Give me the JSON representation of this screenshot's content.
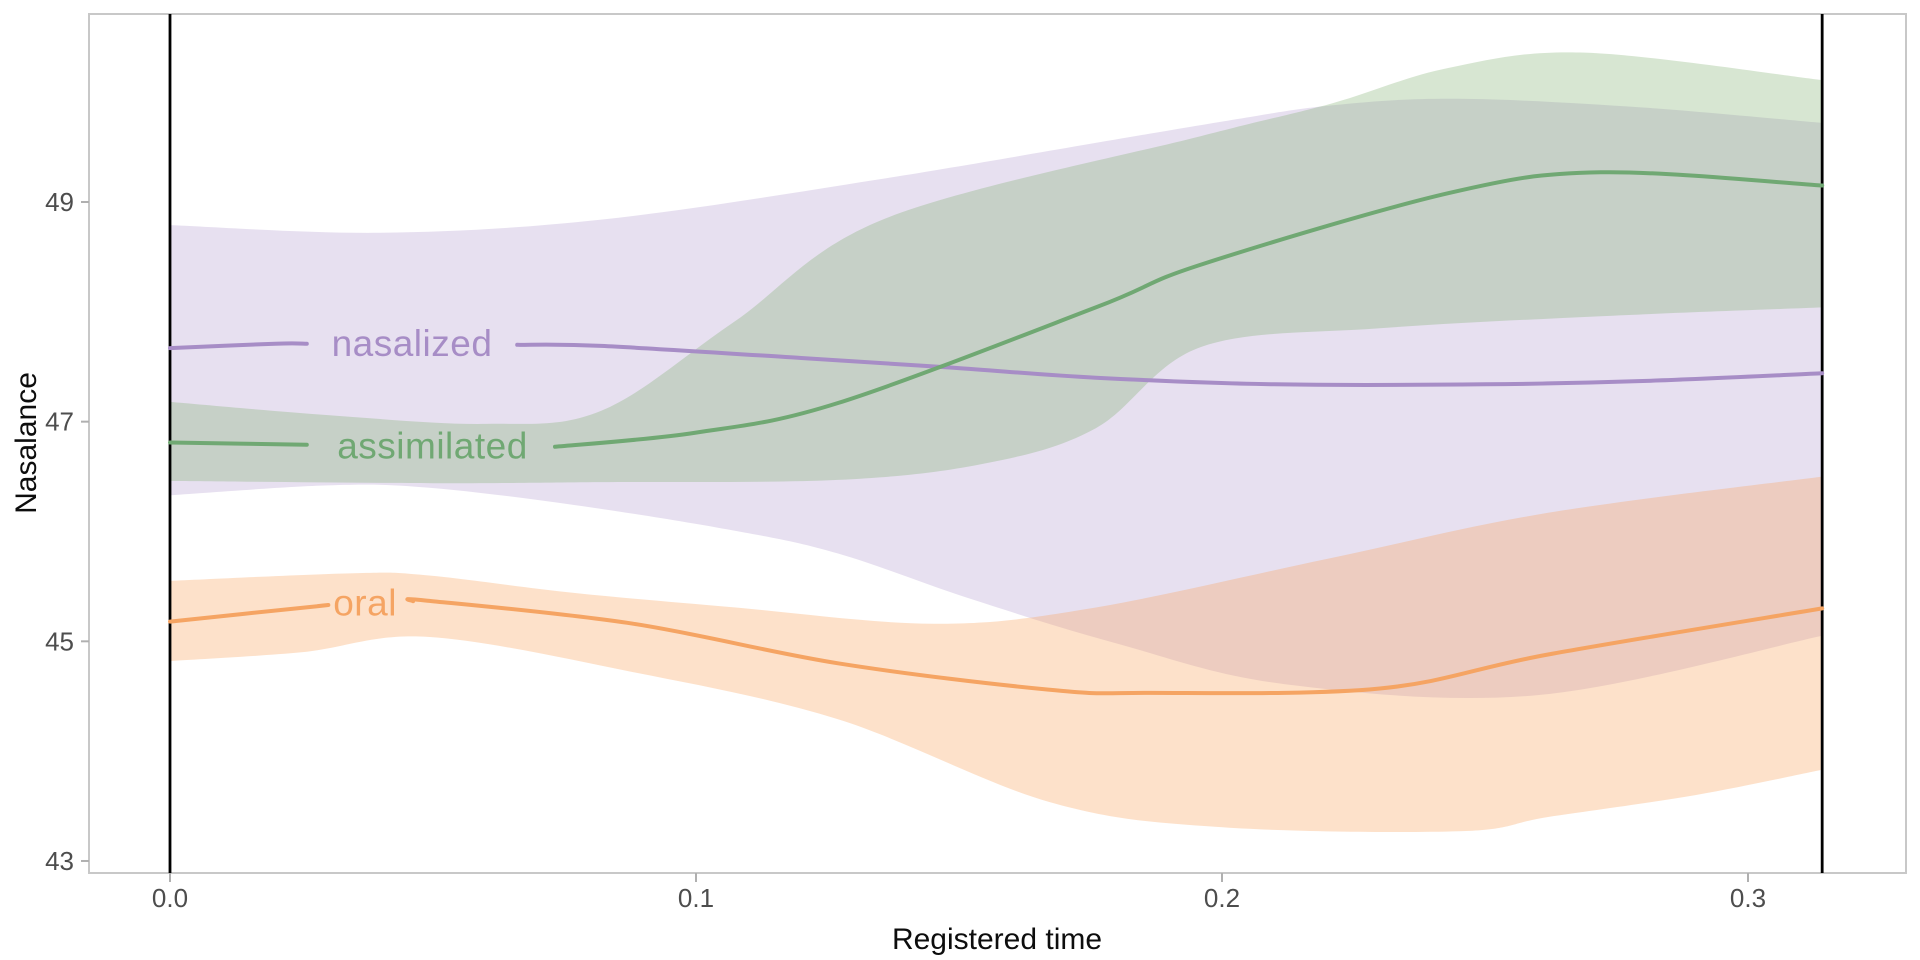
{
  "page": {
    "background": "#ffffff"
  },
  "style": {
    "panel_border_color": "#c8c8c8",
    "tick_color": "#b0b0b0",
    "tick_label_color": "#4d4d4d",
    "axis_title_color": "#0d0d0d",
    "reference_line_color": "#000000",
    "background": "#ffffff"
  },
  "chart_data": {
    "type": "line",
    "title": "",
    "xlabel": "Registered time",
    "ylabel": "Nasalance",
    "xlim": [
      -0.0157,
      0.3298
    ],
    "ylim": [
      42.89,
      50.71
    ],
    "grid": "off",
    "legend": "inline-labels",
    "x_ticks": [
      {
        "value": 0.0,
        "label": "0.0"
      },
      {
        "value": 0.1,
        "label": "0.1"
      },
      {
        "value": 0.2,
        "label": "0.2"
      },
      {
        "value": 0.3,
        "label": "0.3"
      }
    ],
    "y_ticks": [
      {
        "value": 43,
        "label": "43"
      },
      {
        "value": 45,
        "label": "45"
      },
      {
        "value": 47,
        "label": "47"
      },
      {
        "value": 49,
        "label": "49"
      }
    ],
    "reference_lines_x": [
      0.0,
      0.3141
    ],
    "series": [
      {
        "name": "nasalized",
        "line_color": "#a78dc6",
        "band_color": "#a78dc6",
        "band_opacity": 0.27,
        "label": {
          "text": "nasalized",
          "t": 0.046,
          "gap_start": 0.026,
          "gap_end": 0.066
        },
        "line": [
          [
            0,
            47.67
          ],
          [
            0.02,
            47.71
          ],
          [
            0.046,
            47.71
          ],
          [
            0.066,
            47.7
          ],
          [
            0.082,
            47.69
          ],
          [
            0.12,
            47.58
          ],
          [
            0.149,
            47.49
          ],
          [
            0.176,
            47.4
          ],
          [
            0.21,
            47.34
          ],
          [
            0.25,
            47.34
          ],
          [
            0.28,
            47.37
          ],
          [
            0.3141,
            47.44
          ]
        ],
        "band_upper": [
          [
            0,
            48.79
          ],
          [
            0.04,
            48.72
          ],
          [
            0.082,
            48.84
          ],
          [
            0.134,
            49.2
          ],
          [
            0.196,
            49.7
          ],
          [
            0.221,
            49.88
          ],
          [
            0.245,
            49.94
          ],
          [
            0.28,
            49.86
          ],
          [
            0.3141,
            49.72
          ]
        ],
        "band_lower": [
          [
            0,
            46.33
          ],
          [
            0.03,
            46.42
          ],
          [
            0.049,
            46.4
          ],
          [
            0.077,
            46.24
          ],
          [
            0.107,
            46.01
          ],
          [
            0.127,
            45.8
          ],
          [
            0.152,
            45.39
          ],
          [
            0.18,
            44.98
          ],
          [
            0.212,
            44.61
          ],
          [
            0.26,
            44.51
          ],
          [
            0.3141,
            45.05
          ]
        ]
      },
      {
        "name": "assimilated",
        "line_color": "#70a873",
        "band_color": "#79ad6b",
        "band_opacity": 0.3,
        "label": {
          "text": "assimilated",
          "t": 0.0499,
          "gap_start": 0.026,
          "gap_end": 0.0732
        },
        "line": [
          [
            0,
            46.81
          ],
          [
            0.026,
            46.79
          ],
          [
            0.073,
            46.77
          ],
          [
            0.1,
            46.9
          ],
          [
            0.127,
            47.17
          ],
          [
            0.176,
            48.04
          ],
          [
            0.196,
            48.43
          ],
          [
            0.243,
            49.08
          ],
          [
            0.272,
            49.27
          ],
          [
            0.3141,
            49.15
          ]
        ],
        "band_upper": [
          [
            0,
            47.18
          ],
          [
            0.03,
            47.06
          ],
          [
            0.06,
            46.98
          ],
          [
            0.082,
            47.1
          ],
          [
            0.107,
            47.9
          ],
          [
            0.136,
            48.85
          ],
          [
            0.196,
            49.6
          ],
          [
            0.221,
            49.9
          ],
          [
            0.243,
            50.22
          ],
          [
            0.269,
            50.36
          ],
          [
            0.3141,
            50.11
          ]
        ],
        "band_lower": [
          [
            0,
            46.46
          ],
          [
            0.05,
            46.44
          ],
          [
            0.082,
            46.45
          ],
          [
            0.127,
            46.47
          ],
          [
            0.155,
            46.62
          ],
          [
            0.176,
            46.94
          ],
          [
            0.196,
            47.68
          ],
          [
            0.23,
            47.85
          ],
          [
            0.272,
            47.96
          ],
          [
            0.3141,
            48.04
          ]
        ]
      },
      {
        "name": "oral",
        "line_color": "#f5a463",
        "band_color": "#f9a159",
        "band_opacity": 0.32,
        "label": {
          "text": "oral",
          "t": 0.0371,
          "gap_start": 0.0281,
          "gap_end": 0.0462
        },
        "line": [
          [
            0,
            45.18
          ],
          [
            0.028,
            45.32
          ],
          [
            0.037,
            45.35
          ],
          [
            0.049,
            45.37
          ],
          [
            0.088,
            45.16
          ],
          [
            0.127,
            44.8
          ],
          [
            0.167,
            44.56
          ],
          [
            0.186,
            44.53
          ],
          [
            0.23,
            44.57
          ],
          [
            0.262,
            44.88
          ],
          [
            0.3141,
            45.3
          ]
        ],
        "band_upper": [
          [
            0,
            45.55
          ],
          [
            0.035,
            45.62
          ],
          [
            0.049,
            45.6
          ],
          [
            0.077,
            45.44
          ],
          [
            0.107,
            45.31
          ],
          [
            0.145,
            45.16
          ],
          [
            0.175,
            45.3
          ],
          [
            0.22,
            45.75
          ],
          [
            0.262,
            46.17
          ],
          [
            0.3141,
            46.5
          ]
        ],
        "band_lower": [
          [
            0,
            44.82
          ],
          [
            0.025,
            44.9
          ],
          [
            0.049,
            45.04
          ],
          [
            0.088,
            44.72
          ],
          [
            0.127,
            44.29
          ],
          [
            0.167,
            43.54
          ],
          [
            0.199,
            43.31
          ],
          [
            0.245,
            43.27
          ],
          [
            0.262,
            43.4
          ],
          [
            0.29,
            43.6
          ],
          [
            0.3141,
            43.83
          ]
        ]
      }
    ]
  }
}
